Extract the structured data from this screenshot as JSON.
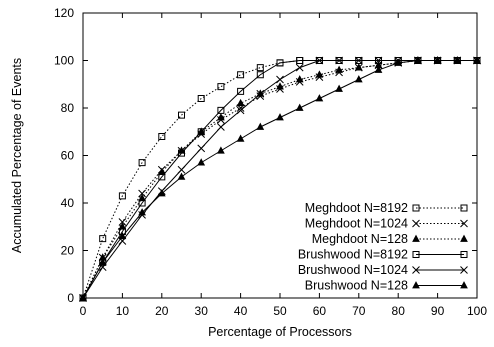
{
  "chart_data": {
    "type": "line",
    "title": "",
    "xlabel": "Percentage of Processors",
    "ylabel": "Accumulated Percentage of Events",
    "xlim": [
      0,
      100
    ],
    "ylim": [
      0,
      120
    ],
    "xticks": [
      0,
      10,
      20,
      30,
      40,
      50,
      60,
      70,
      80,
      90,
      100
    ],
    "yticks": [
      0,
      20,
      40,
      60,
      80,
      100,
      120
    ],
    "grid": false,
    "legend_position": "bottom-right",
    "series": [
      {
        "name": "Meghdoot N=8192",
        "linestyle": "dotted",
        "marker": "square",
        "color": "#000000",
        "x": [
          0,
          5,
          10,
          15,
          20,
          25,
          30,
          35,
          40,
          45,
          50,
          55,
          60,
          65,
          70,
          75,
          80,
          85,
          90,
          95,
          100
        ],
        "y": [
          0,
          25,
          43,
          57,
          68,
          77,
          84,
          89,
          94,
          97,
          99,
          100,
          100,
          100,
          100,
          100,
          100,
          100,
          100,
          100,
          100
        ]
      },
      {
        "name": "Meghdoot N=1024",
        "linestyle": "dotted",
        "marker": "x",
        "color": "#000000",
        "x": [
          0,
          5,
          10,
          15,
          20,
          25,
          30,
          35,
          40,
          45,
          50,
          55,
          60,
          65,
          70,
          75,
          80,
          85,
          90,
          95,
          100
        ],
        "y": [
          0,
          17,
          32,
          44,
          54,
          62,
          69,
          75,
          80,
          85,
          88,
          91,
          93,
          95,
          97,
          98,
          99,
          100,
          100,
          100,
          100
        ]
      },
      {
        "name": "Meghdoot N=128",
        "linestyle": "dotted",
        "marker": "triangle",
        "color": "#000000",
        "x": [
          0,
          5,
          10,
          15,
          20,
          25,
          30,
          35,
          40,
          45,
          50,
          55,
          60,
          65,
          70,
          75,
          80,
          85,
          90,
          95,
          100
        ],
        "y": [
          0,
          17,
          30,
          42,
          53,
          62,
          70,
          76,
          82,
          86,
          89,
          92,
          94,
          96,
          97,
          98,
          99,
          100,
          100,
          100,
          100
        ]
      },
      {
        "name": "Brushwood N=8192",
        "linestyle": "solid",
        "marker": "square",
        "color": "#000000",
        "x": [
          0,
          5,
          10,
          15,
          20,
          25,
          30,
          35,
          40,
          45,
          50,
          55,
          60,
          65,
          70,
          75,
          80,
          85,
          90,
          95,
          100
        ],
        "y": [
          0,
          15,
          28,
          40,
          51,
          61,
          70,
          79,
          87,
          94,
          99,
          100,
          100,
          100,
          100,
          100,
          100,
          100,
          100,
          100,
          100
        ]
      },
      {
        "name": "Brushwood N=1024",
        "linestyle": "solid",
        "marker": "x",
        "color": "#000000",
        "x": [
          0,
          5,
          10,
          15,
          20,
          25,
          30,
          35,
          40,
          45,
          50,
          55,
          60,
          65,
          70,
          75,
          80,
          85,
          90,
          95,
          100
        ],
        "y": [
          0,
          13,
          24,
          35,
          45,
          54,
          63,
          72,
          79,
          86,
          92,
          97,
          100,
          100,
          100,
          100,
          100,
          100,
          100,
          100,
          100
        ]
      },
      {
        "name": "Brushwood N=128",
        "linestyle": "solid",
        "marker": "triangle",
        "color": "#000000",
        "x": [
          0,
          5,
          10,
          15,
          20,
          25,
          30,
          35,
          40,
          45,
          50,
          55,
          60,
          65,
          70,
          75,
          80,
          85,
          90,
          95,
          100
        ],
        "y": [
          0,
          15,
          26,
          36,
          44,
          51,
          57,
          62,
          67,
          72,
          76,
          80,
          84,
          88,
          92,
          96,
          99,
          100,
          100,
          100,
          100
        ]
      }
    ]
  }
}
